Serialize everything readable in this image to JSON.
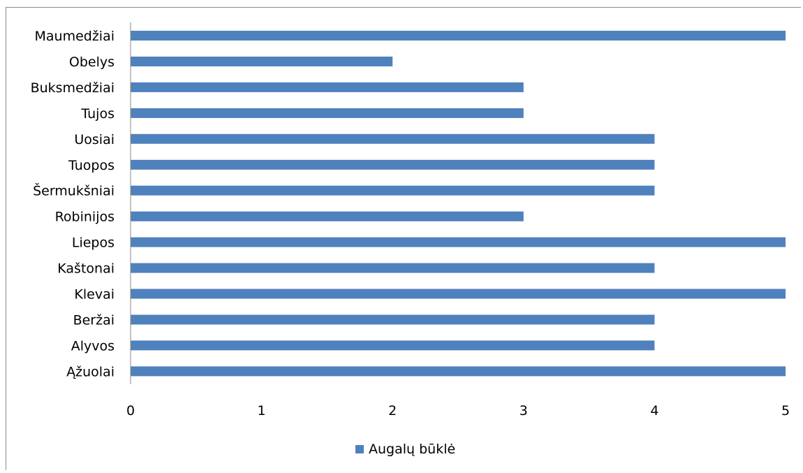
{
  "chart_data": {
    "type": "bar",
    "orientation": "horizontal",
    "categories": [
      "Maumedžiai",
      "Obelys",
      "Buksmedžiai",
      "Tujos",
      "Uosiai",
      "Tuopos",
      "Šermukšniai",
      "Robinijos",
      "Liepos",
      "Kaštonai",
      "Klevai",
      "Beržai",
      "Alyvos",
      "Ąžuolai"
    ],
    "series": [
      {
        "name": "Augalų būklė",
        "color": "#4f81bd",
        "values": [
          5,
          2,
          3,
          3,
          4,
          4,
          4,
          3,
          5,
          4,
          5,
          4,
          4,
          5
        ]
      }
    ],
    "xlim": [
      0,
      5
    ],
    "xticks": [
      "0",
      "1",
      "2",
      "3",
      "4",
      "5"
    ],
    "grid": false,
    "legend_position": "bottom"
  }
}
